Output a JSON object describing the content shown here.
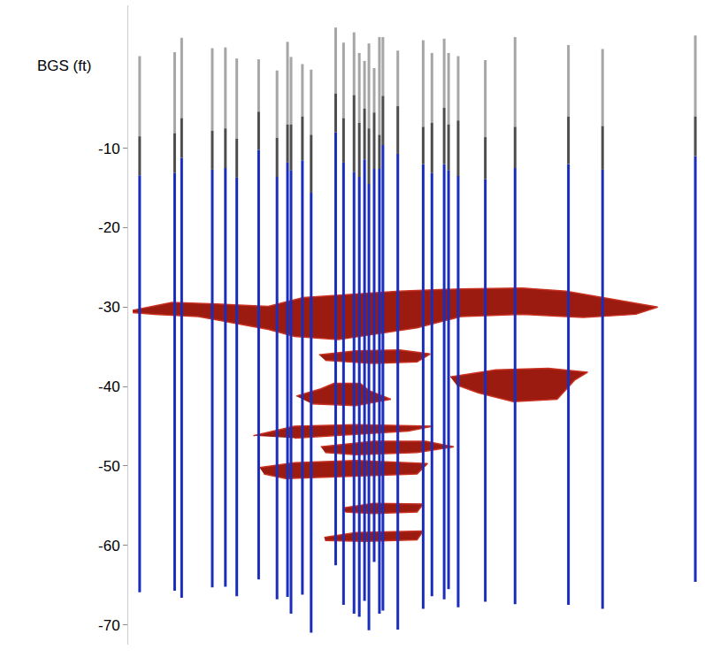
{
  "chart_data": {
    "type": "wells",
    "y_title": "BGS (ft)",
    "ylim": [
      -72.5,
      8
    ],
    "yticks": [
      -10,
      -20,
      -30,
      -40,
      -50,
      -60,
      -70
    ],
    "xlim": [
      140,
      795
    ],
    "tick_labels": "y",
    "wells": [
      {
        "x": 153,
        "top": 1.6,
        "casing": -8.5,
        "screen_top": -13.4,
        "bottom": -65.9
      },
      {
        "x": 193,
        "top": 2.1,
        "casing": -8.1,
        "screen_top": -13.1,
        "bottom": -65.7
      },
      {
        "x": 201,
        "top": 3.9,
        "casing": -6.2,
        "screen_top": -11.2,
        "bottom": -66.6
      },
      {
        "x": 236,
        "top": 2.6,
        "casing": -7.8,
        "screen_top": -12.7,
        "bottom": -65.3
      },
      {
        "x": 251,
        "top": 2.7,
        "casing": -7.5,
        "screen_top": -12.5,
        "bottom": -65.2
      },
      {
        "x": 264,
        "top": 1.3,
        "casing": -8.8,
        "screen_top": -13.7,
        "bottom": -66.4
      },
      {
        "x": 289,
        "top": 1.2,
        "casing": -5.4,
        "screen_top": -10.2,
        "bottom": -64.3
      },
      {
        "x": 310,
        "top": -0.2,
        "casing": -8.7,
        "screen_top": -13.6,
        "bottom": -66.8
      },
      {
        "x": 322,
        "top": 3.4,
        "casing": -7.0,
        "screen_top": -11.8,
        "bottom": -66.5
      },
      {
        "x": 326,
        "top": 1.5,
        "casing": -7.0,
        "screen_top": -12.8,
        "bottom": -68.6
      },
      {
        "x": 339,
        "top": 0.6,
        "casing": -6.0,
        "screen_top": -11.5,
        "bottom": -66.2
      },
      {
        "x": 349,
        "top": -0.1,
        "casing": -8.3,
        "screen_top": -15.6,
        "bottom": -71.0
      },
      {
        "x": 377,
        "top": 5.2,
        "casing": -3.1,
        "screen_top": -8.0,
        "bottom": -62.5
      },
      {
        "x": 386,
        "top": 3.3,
        "casing": -6.2,
        "screen_top": -11.8,
        "bottom": -67.5
      },
      {
        "x": 398,
        "top": 4.6,
        "casing": -3.3,
        "screen_top": -13.0,
        "bottom": -68.6
      },
      {
        "x": 404,
        "top": 2.0,
        "casing": -6.8,
        "screen_top": -13.6,
        "bottom": -69.0
      },
      {
        "x": 410,
        "top": 1.0,
        "casing": -5.0,
        "screen_top": -11.4,
        "bottom": -67.0
      },
      {
        "x": 415,
        "top": 3.2,
        "casing": -7.5,
        "screen_top": -14.5,
        "bottom": -70.7
      },
      {
        "x": 421,
        "top": 0.1,
        "casing": -5.5,
        "screen_top": -12.6,
        "bottom": -62.1
      },
      {
        "x": 427,
        "top": 4.0,
        "casing": -8.3,
        "screen_top": -12.6,
        "bottom": -68.6
      },
      {
        "x": 431,
        "top": 4.0,
        "casing": -3.4,
        "screen_top": -9.6,
        "bottom": -68.2
      },
      {
        "x": 448,
        "top": 2.3,
        "casing": -4.7,
        "screen_top": -10.7,
        "bottom": -70.6
      },
      {
        "x": 477,
        "top": 3.6,
        "casing": -7.3,
        "screen_top": -12.0,
        "bottom": -68.0
      },
      {
        "x": 487,
        "top": 2.0,
        "casing": -6.8,
        "screen_top": -13.1,
        "bottom": -66.4
      },
      {
        "x": 501,
        "top": 3.8,
        "casing": -4.9,
        "screen_top": -12.0,
        "bottom": -66.8
      },
      {
        "x": 506,
        "top": 2.0,
        "casing": -7.0,
        "screen_top": -12.8,
        "bottom": -65.5
      },
      {
        "x": 517,
        "top": 1.6,
        "casing": -6.5,
        "screen_top": -13.5,
        "bottom": -67.8
      },
      {
        "x": 548,
        "top": 1.1,
        "casing": -8.6,
        "screen_top": -13.9,
        "bottom": -67.1
      },
      {
        "x": 582,
        "top": 4.0,
        "casing": -7.3,
        "screen_top": -12.5,
        "bottom": -67.4
      },
      {
        "x": 643,
        "top": 3.0,
        "casing": -6.0,
        "screen_top": -12.0,
        "bottom": -67.5
      },
      {
        "x": 682,
        "top": 2.5,
        "casing": -7.2,
        "screen_top": -12.7,
        "bottom": -68.0
      },
      {
        "x": 788,
        "top": 4.2,
        "casing": -6.0,
        "screen_top": -11.0,
        "bottom": -64.6
      }
    ],
    "layers": [
      {
        "x": [
          145,
          190,
          240,
          300,
          340,
          400,
          450,
          520,
          590,
          640,
          700,
          745,
          720,
          660,
          590,
          520,
          470,
          420,
          380,
          330,
          300,
          260,
          220,
          170,
          145
        ],
        "y": [
          -30.4,
          -29.4,
          -29.6,
          -29.9,
          -28.8,
          -28.4,
          -28.0,
          -27.7,
          -27.6,
          -28.0,
          -29.1,
          -30.0,
          -30.9,
          -31.3,
          -30.9,
          -31.2,
          -32.6,
          -33.4,
          -34.1,
          -33.7,
          -32.8,
          -32.0,
          -31.2,
          -30.9,
          -30.7
        ]
      },
      {
        "x": [
          358,
          400,
          450,
          485,
          470,
          420,
          365
        ],
        "y": [
          -36.0,
          -35.5,
          -35.4,
          -35.9,
          -36.9,
          -37.1,
          -36.7
        ]
      },
      {
        "x": [
          508,
          560,
          620,
          665,
          650,
          630,
          580,
          540,
          515
        ],
        "y": [
          -38.8,
          -37.9,
          -37.7,
          -38.2,
          -39.2,
          -41.6,
          -41.9,
          -40.8,
          -39.8
        ]
      },
      {
        "x": [
          332,
          360,
          375,
          405,
          415,
          440,
          400,
          350
        ],
        "y": [
          -41.2,
          -40.3,
          -39.6,
          -39.6,
          -40.5,
          -41.6,
          -42.4,
          -42.2
        ]
      },
      {
        "x": [
          283,
          330,
          400,
          488,
          460,
          400,
          330
        ],
        "y": [
          -46.2,
          -45.0,
          -44.8,
          -45.0,
          -45.6,
          -46.0,
          -46.5
        ]
      },
      {
        "x": [
          360,
          420,
          480,
          512,
          470,
          400,
          365
        ],
        "y": [
          -47.6,
          -46.9,
          -46.9,
          -47.6,
          -48.3,
          -48.6,
          -48.3
        ]
      },
      {
        "x": [
          290,
          330,
          400,
          482,
          470,
          400,
          320,
          295
        ],
        "y": [
          -50.2,
          -49.6,
          -49.3,
          -49.7,
          -51.0,
          -51.3,
          -51.6,
          -51.0
        ]
      },
      {
        "x": [
          385,
          420,
          477,
          470,
          420,
          388
        ],
        "y": [
          -55.3,
          -54.7,
          -54.8,
          -55.8,
          -56.0,
          -55.8
        ]
      },
      {
        "x": [
          364,
          400,
          477,
          470,
          410,
          365
        ],
        "y": [
          -59.0,
          -58.4,
          -58.2,
          -59.3,
          -59.5,
          -59.4
        ]
      }
    ]
  }
}
